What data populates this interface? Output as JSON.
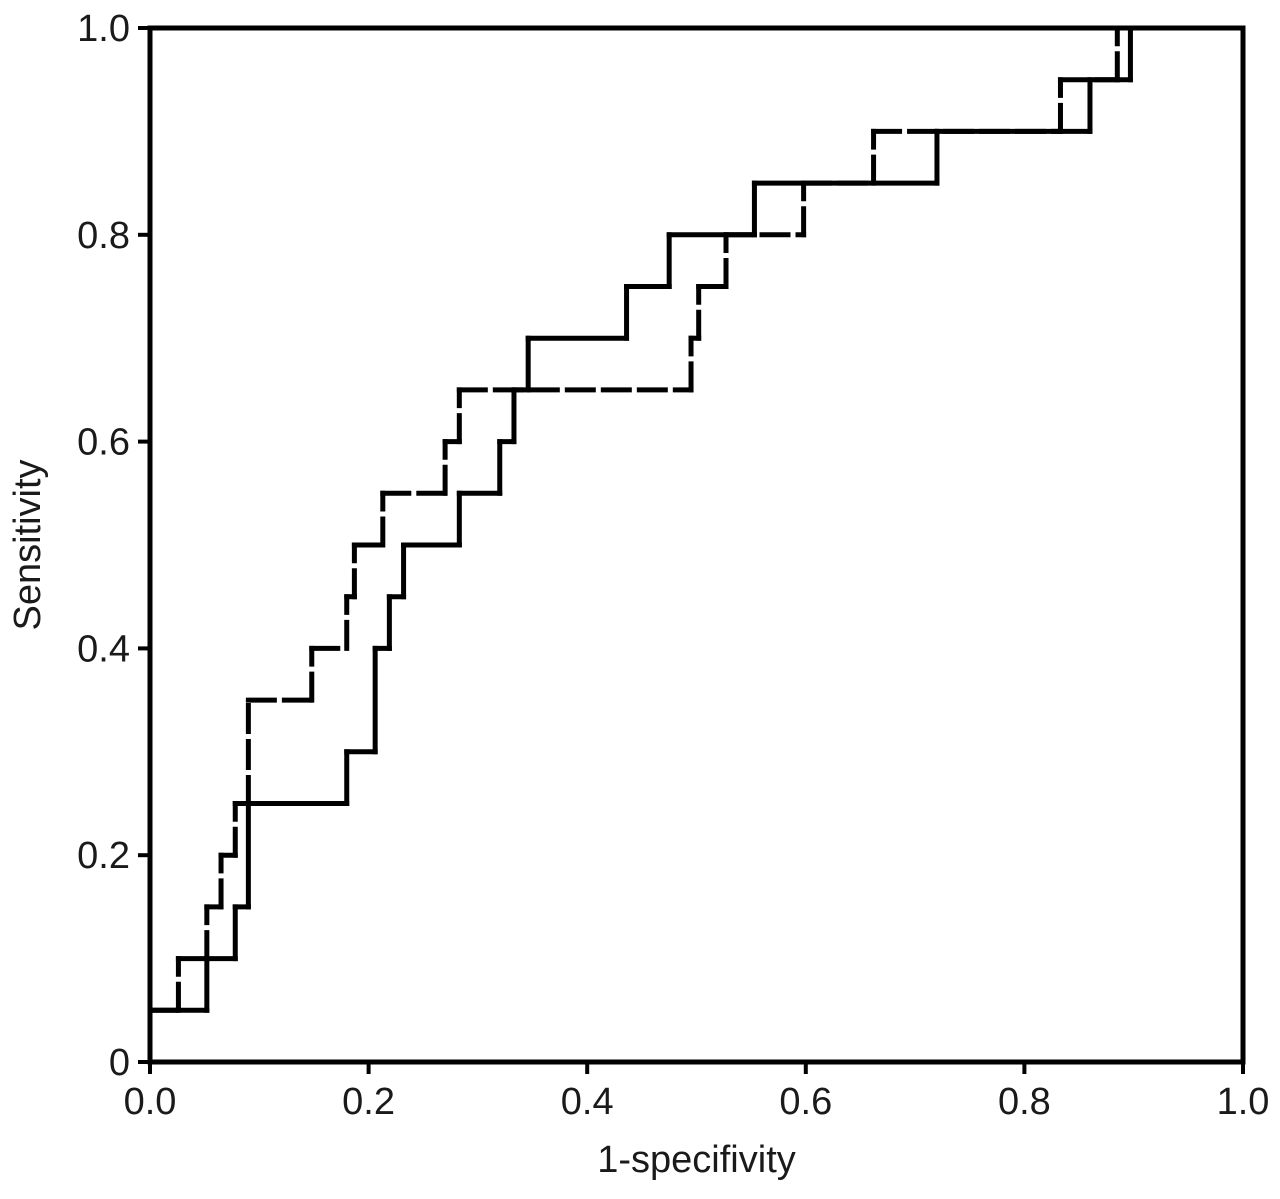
{
  "chart_data": {
    "type": "line",
    "step": true,
    "xlabel": "1-specifivity",
    "ylabel": "Sensitivity",
    "xlim": [
      0,
      1
    ],
    "ylim": [
      0,
      1
    ],
    "grid": false,
    "x_ticks": [
      "0.0",
      "0.2",
      "0.4",
      "0.6",
      "0.8",
      "1.0"
    ],
    "y_ticks": [
      "0",
      "0.2",
      "0.4",
      "0.6",
      "0.8",
      "1.0"
    ],
    "series": [
      {
        "style": "solid",
        "color": "#000000",
        "points": [
          [
            0,
            0.05
          ],
          [
            0.052,
            0.05
          ],
          [
            0.052,
            0.1
          ],
          [
            0.078,
            0.1
          ],
          [
            0.078,
            0.15
          ],
          [
            0.09,
            0.15
          ],
          [
            0.09,
            0.25
          ],
          [
            0.18,
            0.25
          ],
          [
            0.18,
            0.3
          ],
          [
            0.206,
            0.3
          ],
          [
            0.206,
            0.4
          ],
          [
            0.219,
            0.4
          ],
          [
            0.219,
            0.45
          ],
          [
            0.232,
            0.45
          ],
          [
            0.232,
            0.5
          ],
          [
            0.283,
            0.5
          ],
          [
            0.283,
            0.55
          ],
          [
            0.32,
            0.55
          ],
          [
            0.32,
            0.6
          ],
          [
            0.333,
            0.6
          ],
          [
            0.333,
            0.65
          ],
          [
            0.346,
            0.65
          ],
          [
            0.346,
            0.7
          ],
          [
            0.436,
            0.7
          ],
          [
            0.436,
            0.75
          ],
          [
            0.475,
            0.75
          ],
          [
            0.475,
            0.8
          ],
          [
            0.553,
            0.8
          ],
          [
            0.553,
            0.85
          ],
          [
            0.72,
            0.85
          ],
          [
            0.72,
            0.9
          ],
          [
            0.86,
            0.9
          ],
          [
            0.86,
            0.95
          ],
          [
            0.897,
            0.95
          ],
          [
            0.897,
            1.0
          ]
        ]
      },
      {
        "style": "dashed",
        "color": "#000000",
        "points": [
          [
            0,
            0.05
          ],
          [
            0.026,
            0.05
          ],
          [
            0.026,
            0.1
          ],
          [
            0.052,
            0.1
          ],
          [
            0.052,
            0.15
          ],
          [
            0.065,
            0.15
          ],
          [
            0.065,
            0.2
          ],
          [
            0.078,
            0.2
          ],
          [
            0.078,
            0.25
          ],
          [
            0.09,
            0.25
          ],
          [
            0.09,
            0.35
          ],
          [
            0.148,
            0.35
          ],
          [
            0.148,
            0.4
          ],
          [
            0.18,
            0.4
          ],
          [
            0.18,
            0.45
          ],
          [
            0.187,
            0.45
          ],
          [
            0.187,
            0.5
          ],
          [
            0.213,
            0.5
          ],
          [
            0.213,
            0.55
          ],
          [
            0.27,
            0.55
          ],
          [
            0.27,
            0.6
          ],
          [
            0.283,
            0.6
          ],
          [
            0.283,
            0.65
          ],
          [
            0.495,
            0.65
          ],
          [
            0.495,
            0.7
          ],
          [
            0.502,
            0.7
          ],
          [
            0.502,
            0.75
          ],
          [
            0.527,
            0.75
          ],
          [
            0.527,
            0.8
          ],
          [
            0.598,
            0.8
          ],
          [
            0.598,
            0.85
          ],
          [
            0.662,
            0.85
          ],
          [
            0.662,
            0.9
          ],
          [
            0.833,
            0.9
          ],
          [
            0.833,
            0.95
          ],
          [
            0.885,
            0.95
          ],
          [
            0.885,
            1.0
          ]
        ]
      }
    ]
  }
}
